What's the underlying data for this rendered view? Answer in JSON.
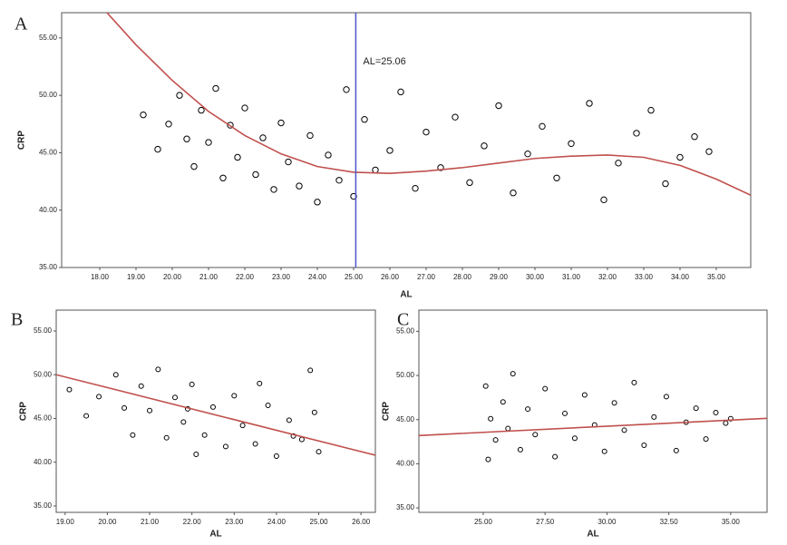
{
  "chart_data": [
    {
      "type": "scatter",
      "panel": "A",
      "x_label": "AL",
      "y_label": "CRP",
      "color": "#000000",
      "xlim": [
        16.95,
        35.95
      ],
      "ylim": [
        35,
        57.2
      ],
      "xticks": [
        {
          "value": 18,
          "label": "18.00"
        },
        {
          "value": 19,
          "label": "19.00"
        },
        {
          "value": 20,
          "label": "20.00"
        },
        {
          "value": 21,
          "label": "21.00"
        },
        {
          "value": 22,
          "label": "22.00"
        },
        {
          "value": 23,
          "label": "23.00"
        },
        {
          "value": 24,
          "label": "24.00"
        },
        {
          "value": 25,
          "label": "25.00"
        },
        {
          "value": 26,
          "label": "26.00"
        },
        {
          "value": 27,
          "label": "27.00"
        },
        {
          "value": 28,
          "label": "28.00"
        },
        {
          "value": 29,
          "label": "29.00"
        },
        {
          "value": 30,
          "label": "30.00"
        },
        {
          "value": 31,
          "label": "31.00"
        },
        {
          "value": 32,
          "label": "32.00"
        },
        {
          "value": 33,
          "label": "33.00"
        },
        {
          "value": 34,
          "label": "34.00"
        },
        {
          "value": 35,
          "label": "35.00"
        }
      ],
      "yticks": [
        {
          "value": 35,
          "label": "35.00"
        },
        {
          "value": 40,
          "label": "40.00"
        },
        {
          "value": 45,
          "label": "45.00"
        },
        {
          "value": 50,
          "label": "50.00"
        },
        {
          "value": 55,
          "label": "55.00"
        }
      ],
      "x": [
        19.2,
        19.6,
        19.9,
        20.2,
        20.4,
        20.6,
        20.8,
        21.0,
        21.2,
        21.4,
        21.6,
        21.8,
        22.0,
        22.3,
        22.5,
        22.8,
        23.0,
        23.2,
        23.5,
        23.8,
        24.0,
        24.3,
        24.6,
        24.8,
        25.0,
        25.3,
        25.6,
        26.0,
        26.3,
        26.7,
        27.0,
        27.4,
        27.8,
        28.2,
        28.6,
        29.0,
        29.4,
        29.8,
        30.2,
        30.6,
        31.0,
        31.5,
        31.9,
        32.3,
        32.8,
        33.2,
        33.6,
        34.0,
        34.4,
        34.8
      ],
      "values": [
        48.3,
        45.3,
        47.5,
        50.0,
        46.2,
        43.8,
        48.7,
        45.9,
        50.6,
        42.8,
        47.4,
        44.6,
        48.9,
        43.1,
        46.3,
        41.8,
        47.6,
        44.2,
        42.1,
        46.5,
        40.7,
        44.8,
        42.6,
        50.5,
        41.2,
        47.9,
        43.5,
        45.2,
        50.3,
        41.9,
        46.8,
        43.7,
        48.1,
        42.4,
        45.6,
        49.1,
        41.5,
        44.9,
        47.3,
        42.8,
        45.8,
        49.3,
        40.9,
        44.1,
        46.7,
        48.7,
        42.3,
        44.6,
        46.4,
        45.1
      ],
      "fit": {
        "color": "#c0504d",
        "x": [
          18.2,
          19,
          20,
          21,
          22,
          23,
          24,
          25,
          26,
          27,
          28,
          29,
          30,
          31,
          32,
          33,
          34,
          35,
          35.95
        ],
        "values": [
          57.2,
          54.4,
          51.3,
          48.6,
          46.5,
          44.9,
          43.8,
          43.3,
          43.2,
          43.4,
          43.7,
          44.1,
          44.5,
          44.7,
          44.8,
          44.6,
          43.9,
          42.7,
          41.3
        ]
      },
      "annotation": {
        "x": 25.06,
        "label": "AL=25.06",
        "color": "#4a56c8"
      }
    },
    {
      "type": "scatter",
      "panel": "B",
      "x_label": "AL",
      "y_label": "CRP",
      "color": "#000000",
      "xlim": [
        18.79,
        26.34
      ],
      "ylim": [
        34.27,
        57.38
      ],
      "xticks": [
        {
          "value": 19,
          "label": "19.00"
        },
        {
          "value": 20,
          "label": "20.00"
        },
        {
          "value": 21,
          "label": "21.00"
        },
        {
          "value": 22,
          "label": "22.00"
        },
        {
          "value": 23,
          "label": "23.00"
        },
        {
          "value": 24,
          "label": "24.00"
        },
        {
          "value": 25,
          "label": "25.00"
        },
        {
          "value": 26,
          "label": "26.00"
        }
      ],
      "yticks": [
        {
          "value": 35,
          "label": "35.00"
        },
        {
          "value": 40,
          "label": "40.00"
        },
        {
          "value": 45,
          "label": "45.00"
        },
        {
          "value": 50,
          "label": "50.00"
        },
        {
          "value": 55,
          "label": "55.00"
        }
      ],
      "x": [
        19.1,
        19.5,
        19.8,
        20.2,
        20.4,
        20.6,
        20.8,
        21.0,
        21.2,
        21.4,
        21.6,
        21.8,
        22.0,
        22.3,
        22.5,
        22.8,
        23.0,
        23.2,
        23.5,
        23.8,
        24.0,
        24.3,
        24.6,
        24.8,
        25.0,
        24.9,
        23.6,
        22.1,
        24.4,
        21.9
      ],
      "values": [
        48.3,
        45.3,
        47.5,
        50.0,
        46.2,
        43.1,
        48.7,
        45.9,
        50.6,
        42.8,
        47.4,
        44.6,
        48.9,
        43.1,
        46.3,
        41.8,
        47.6,
        44.2,
        42.1,
        46.5,
        40.7,
        44.8,
        42.6,
        50.5,
        41.2,
        45.7,
        49.0,
        40.9,
        43.0,
        46.1
      ],
      "fit": {
        "color": "#c0504d",
        "x": [
          18.79,
          26.34
        ],
        "values": [
          50.0,
          40.8
        ]
      }
    },
    {
      "type": "scatter",
      "panel": "C",
      "x_label": "AL",
      "y_label": "CRP",
      "color": "#000000",
      "xlim": [
        22.4,
        36.47
      ],
      "ylim": [
        34.5,
        57.4
      ],
      "xticks": [
        {
          "value": 25,
          "label": "25.00"
        },
        {
          "value": 27.5,
          "label": "27.50"
        },
        {
          "value": 30,
          "label": "30.00"
        },
        {
          "value": 32.5,
          "label": "32.50"
        },
        {
          "value": 35,
          "label": "35.00"
        }
      ],
      "yticks": [
        {
          "value": 35,
          "label": "35.00"
        },
        {
          "value": 40,
          "label": "40.00"
        },
        {
          "value": 45,
          "label": "45.00"
        },
        {
          "value": 50,
          "label": "50.00"
        },
        {
          "value": 55,
          "label": "55.00"
        }
      ],
      "x": [
        25.1,
        25.2,
        25.3,
        25.5,
        25.8,
        26.0,
        26.2,
        26.5,
        26.8,
        27.1,
        27.5,
        27.9,
        28.3,
        28.7,
        29.1,
        29.5,
        29.9,
        30.3,
        30.7,
        31.1,
        31.5,
        31.9,
        32.4,
        32.8,
        33.2,
        33.6,
        34.0,
        34.4,
        34.8,
        35.0
      ],
      "values": [
        48.8,
        40.5,
        45.1,
        42.7,
        47.0,
        44.0,
        50.2,
        41.6,
        46.2,
        43.3,
        48.5,
        40.8,
        45.7,
        42.9,
        47.8,
        44.4,
        41.4,
        46.9,
        43.8,
        49.2,
        42.1,
        45.3,
        47.6,
        41.5,
        44.7,
        46.3,
        42.8,
        45.8,
        44.6,
        45.1
      ],
      "fit": {
        "color": "#c0504d",
        "x": [
          22.4,
          36.47
        ],
        "values": [
          43.2,
          45.15
        ]
      }
    }
  ]
}
